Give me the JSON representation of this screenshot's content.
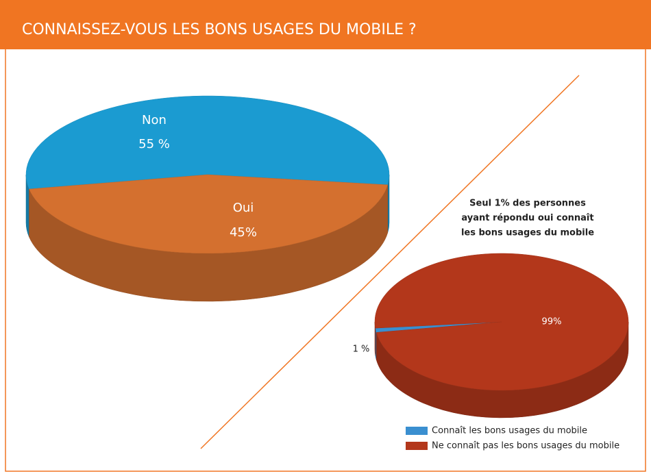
{
  "header": {
    "title": "CONNAISSEZ-VOUS LES BONS USAGES DU MOBILE ?"
  },
  "chart_data": [
    {
      "type": "pie",
      "categories": [
        "Non",
        "Oui"
      ],
      "values": [
        55,
        45
      ],
      "value_labels": [
        "55 %",
        "45%"
      ],
      "colors": [
        "#1b9bd1",
        "#d4702f"
      ]
    },
    {
      "type": "pie",
      "categories": [
        "Connaît les bons usages du mobile",
        "Ne connaît pas les bons usages du mobile"
      ],
      "values": [
        1,
        99
      ],
      "value_labels": [
        "1 %",
        "99%"
      ],
      "colors": [
        "#3a8fd0",
        "#b3371b"
      ],
      "annotation": [
        "Seul 1% des personnes",
        "ayant répondu oui connaît",
        "les bons usages du mobile"
      ],
      "legend": "bottom-right"
    }
  ]
}
